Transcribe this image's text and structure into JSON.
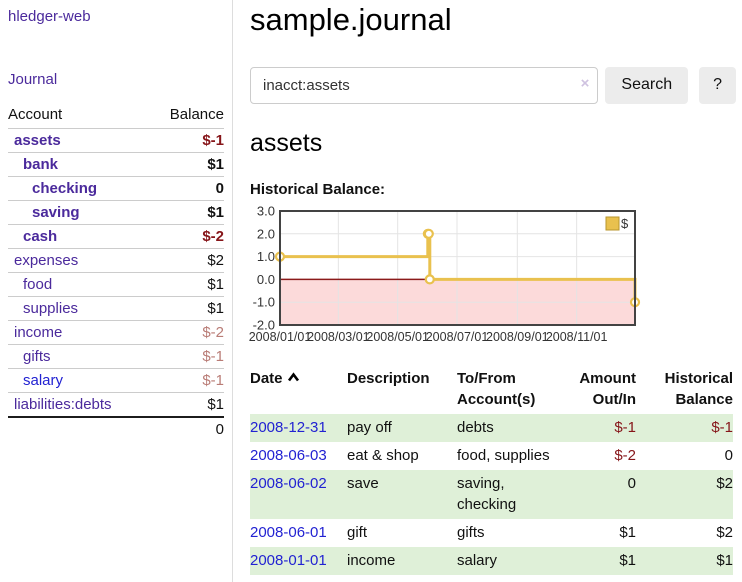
{
  "app": {
    "title": "hledger-web"
  },
  "colors": {
    "link_purple": "#4b2a9c",
    "link_blue": "#2222d2",
    "negative_strong": "#861519",
    "negative_muted": "#b97c76",
    "row_green": "#dff0d8",
    "accent_gold": "#e9c14e"
  },
  "icons": {
    "sort": "chevron-up-icon",
    "clear": "×",
    "help": "?"
  },
  "sidebar": {
    "nav": {
      "journal_label": "Journal"
    },
    "accounts_table": {
      "headers": [
        "Account",
        "Balance"
      ],
      "rows": [
        {
          "account": "assets",
          "balance": "$-1",
          "level": 0,
          "bold": true,
          "neg": "strong",
          "link": "purple"
        },
        {
          "account": "bank",
          "balance": "$1",
          "level": 1,
          "bold": true,
          "neg": null,
          "link": "purple"
        },
        {
          "account": "checking",
          "balance": "0",
          "level": 2,
          "bold": true,
          "neg": null,
          "link": "purple"
        },
        {
          "account": "saving",
          "balance": "$1",
          "level": 2,
          "bold": true,
          "neg": null,
          "link": "purple"
        },
        {
          "account": "cash",
          "balance": "$-2",
          "level": 1,
          "bold": true,
          "neg": "strong",
          "link": "purple"
        },
        {
          "account": "expenses",
          "balance": "$2",
          "level": 0,
          "bold": false,
          "neg": null,
          "link": "purple"
        },
        {
          "account": "food",
          "balance": "$1",
          "level": 1,
          "bold": false,
          "neg": null,
          "link": "purple"
        },
        {
          "account": "supplies",
          "balance": "$1",
          "level": 1,
          "bold": false,
          "neg": null,
          "link": "purple"
        },
        {
          "account": "income",
          "balance": "$-2",
          "level": 0,
          "bold": false,
          "neg": "muted",
          "link": "purple"
        },
        {
          "account": "gifts",
          "balance": "$-1",
          "level": 1,
          "bold": false,
          "neg": "muted",
          "link": "purple"
        },
        {
          "account": "salary",
          "balance": "$-1",
          "level": 1,
          "bold": false,
          "neg": "muted",
          "link": "blue"
        },
        {
          "account": "liabilities:debts",
          "balance": "$1",
          "level": 0,
          "bold": false,
          "neg": null,
          "link": "purple"
        }
      ],
      "total": "0"
    }
  },
  "main": {
    "title": "sample.journal",
    "search": {
      "value": "inacct:assets",
      "clear_icon": "×",
      "button": "Search",
      "help_button": "?"
    },
    "section_title": "assets",
    "chart_label": "Historical Balance:"
  },
  "chart_data": {
    "type": "line",
    "style": "step",
    "title": "Historical Balance",
    "series": [
      {
        "name": "$",
        "color": "#e9c14e",
        "points": [
          [
            "2008-01-01",
            1
          ],
          [
            "2008-06-01",
            2
          ],
          [
            "2008-06-02",
            2
          ],
          [
            "2008-06-03",
            0
          ],
          [
            "2008-12-31",
            -1
          ]
        ]
      }
    ],
    "x_range": [
      "2008-01-01",
      "2008-12-31"
    ],
    "x_ticks": [
      "2008/01/01",
      "2008/03/01",
      "2008/05/01",
      "2008/07/01",
      "2008/09/01",
      "2008/11/01"
    ],
    "y_ticks": [
      "3.0",
      "2.0",
      "1.0",
      "0.0",
      "-1.0",
      "-2.0"
    ],
    "y_gridlines": [
      2,
      1,
      -1
    ],
    "ylim": [
      -2,
      3
    ],
    "grid": true,
    "legend": {
      "label": "$",
      "position": "top-right"
    },
    "negative_region_color": "#fcdada",
    "zero_line_color": "#8b1a1a"
  },
  "register_table": {
    "headers": [
      {
        "label": "Date",
        "sortable": true
      },
      {
        "label": "Description"
      },
      {
        "label": "To/From Account(s)"
      },
      {
        "label": "Amount Out/In",
        "align": "right"
      },
      {
        "label": "Historical Balance",
        "align": "right"
      }
    ],
    "rows": [
      {
        "date": "2008-12-31",
        "description": "pay off",
        "accounts": "debts",
        "amount": "$-1",
        "amount_neg": true,
        "balance": "$-1",
        "balance_neg": true
      },
      {
        "date": "2008-06-03",
        "description": "eat & shop",
        "accounts": "food, supplies",
        "amount": "$-2",
        "amount_neg": true,
        "balance": "0",
        "balance_neg": false
      },
      {
        "date": "2008-06-02",
        "description": "save",
        "accounts": "saving, checking",
        "amount": "0",
        "amount_neg": false,
        "balance": "$2",
        "balance_neg": false
      },
      {
        "date": "2008-06-01",
        "description": "gift",
        "accounts": "gifts",
        "amount": "$1",
        "amount_neg": false,
        "balance": "$2",
        "balance_neg": false
      },
      {
        "date": "2008-01-01",
        "description": "income",
        "accounts": "salary",
        "amount": "$1",
        "amount_neg": false,
        "balance": "$1",
        "balance_neg": false
      }
    ]
  }
}
